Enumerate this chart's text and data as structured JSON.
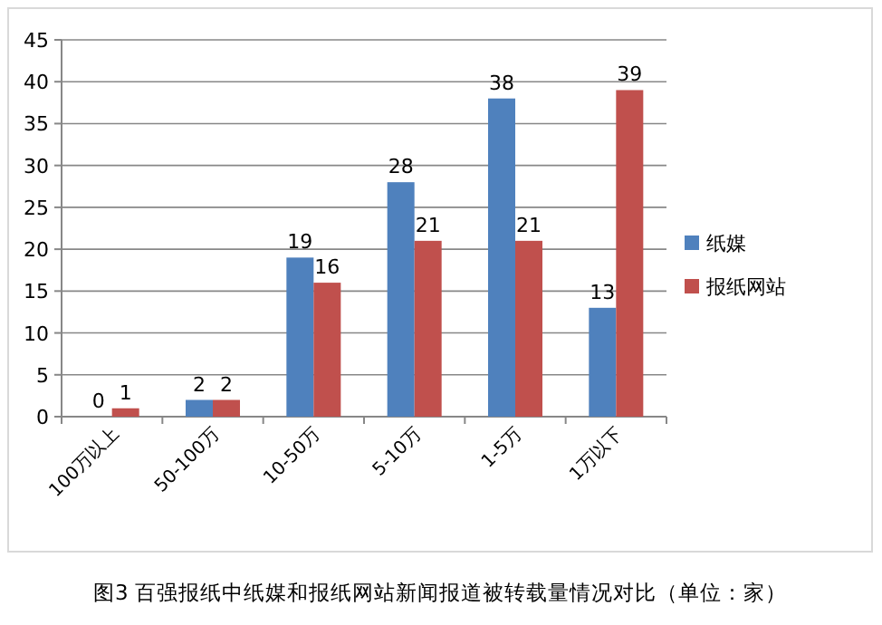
{
  "chart_data": {
    "type": "bar",
    "title": "图3 百强报纸中纸媒和报纸网站新闻报道被转载量情况对比（单位：家）",
    "categories": [
      "100万以上",
      "50-100万",
      "10-50万",
      "5-10万",
      "1-5万",
      "1万以下"
    ],
    "series": [
      {
        "name": "纸媒",
        "color": "#4f81bd",
        "values": [
          0,
          2,
          19,
          28,
          38,
          13
        ]
      },
      {
        "name": "报纸网站",
        "color": "#c0504d",
        "values": [
          1,
          2,
          16,
          21,
          21,
          39
        ]
      }
    ],
    "ylim": [
      0,
      45
    ],
    "yticks": [
      0,
      5,
      10,
      15,
      20,
      25,
      30,
      35,
      40,
      45
    ],
    "grid": "y",
    "legend": "right",
    "data_labels": true
  }
}
